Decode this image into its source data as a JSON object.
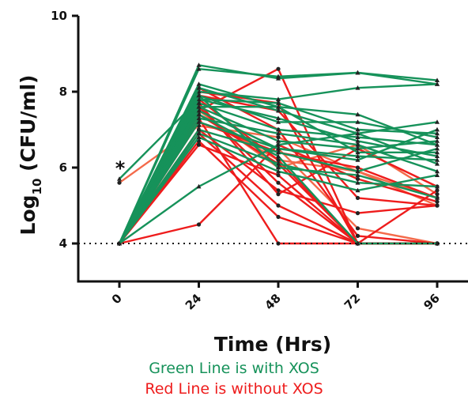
{
  "chart_data": {
    "type": "line",
    "xlabel": "Time (Hrs)",
    "ylabel_main": "Log",
    "ylabel_sub": "10",
    "ylabel_tail": " (CFU/ml)",
    "x": [
      0,
      24,
      48,
      72,
      96
    ],
    "x_tick_labels": [
      "0",
      "24",
      "48",
      "72",
      "96"
    ],
    "y_ticks": [
      4,
      6,
      8,
      10
    ],
    "ylim": [
      3,
      10
    ],
    "detection_limit": 4,
    "annotation": "*",
    "grid": false,
    "legend_notes": {
      "green": "Green Line is with XOS",
      "red": "Red Line is without XOS"
    },
    "colors": {
      "green": "#16925a",
      "red": "#ee1c1c",
      "orange": "#f46a4a",
      "axis": "#111111"
    },
    "series": [
      {
        "group": "green",
        "values": [
          4.0,
          8.7,
          8.35,
          8.5,
          8.3
        ]
      },
      {
        "group": "green",
        "values": [
          4.0,
          8.6,
          8.4,
          8.5,
          8.2
        ]
      },
      {
        "group": "green",
        "values": [
          4.0,
          8.2,
          7.6,
          7.4,
          6.6
        ]
      },
      {
        "group": "green",
        "values": [
          4.0,
          8.0,
          7.8,
          8.1,
          8.2
        ]
      },
      {
        "group": "green",
        "values": [
          4.0,
          7.9,
          7.2,
          7.2,
          6.8
        ]
      },
      {
        "group": "green",
        "values": [
          4.0,
          7.8,
          7.7,
          7.0,
          6.9
        ]
      },
      {
        "group": "green",
        "values": [
          4.0,
          7.7,
          7.0,
          6.8,
          6.6
        ]
      },
      {
        "group": "green",
        "values": [
          4.0,
          7.6,
          7.6,
          6.4,
          6.4
        ]
      },
      {
        "group": "green",
        "values": [
          4.0,
          7.5,
          6.5,
          6.2,
          7.0
        ]
      },
      {
        "group": "green",
        "values": [
          4.0,
          7.3,
          6.9,
          6.6,
          5.9
        ]
      },
      {
        "group": "green",
        "values": [
          4.0,
          7.2,
          6.5,
          6.3,
          6.2
        ]
      },
      {
        "group": "green",
        "values": [
          4.0,
          7.0,
          6.4,
          5.9,
          6.5
        ]
      },
      {
        "group": "green",
        "values": [
          4.0,
          6.9,
          6.1,
          5.6,
          5.5
        ]
      },
      {
        "group": "green",
        "values": [
          4.0,
          6.8,
          5.9,
          5.4,
          5.8
        ]
      },
      {
        "group": "green",
        "values": [
          4.0,
          5.5,
          6.6,
          6.9,
          7.2
        ]
      },
      {
        "group": "green",
        "values": [
          4.0,
          7.4,
          6.3,
          4.0,
          4.0
        ]
      },
      {
        "group": "green",
        "values": [
          5.7,
          7.8,
          7.3,
          6.7,
          6.3
        ]
      },
      {
        "group": "green",
        "values": [
          4.0,
          7.9,
          6.0,
          5.8,
          5.2
        ]
      },
      {
        "group": "green",
        "values": [
          4.0,
          8.1,
          7.5,
          6.9,
          6.1
        ]
      },
      {
        "group": "green",
        "values": [
          4.0,
          7.6,
          6.7,
          6.5,
          6.7
        ]
      },
      {
        "group": "red",
        "values": [
          4.0,
          7.5,
          8.6,
          4.0,
          4.0
        ]
      },
      {
        "group": "red",
        "values": [
          4.0,
          7.8,
          6.2,
          4.0,
          4.0
        ]
      },
      {
        "group": "red",
        "values": [
          4.0,
          7.6,
          5.6,
          4.0,
          4.0
        ]
      },
      {
        "group": "red",
        "values": [
          4.0,
          7.3,
          4.0,
          4.0,
          4.0
        ]
      },
      {
        "group": "red",
        "values": [
          4.0,
          7.2,
          6.4,
          6.0,
          5.2
        ]
      },
      {
        "group": "red",
        "values": [
          4.0,
          7.0,
          5.4,
          4.8,
          5.0
        ]
      },
      {
        "group": "red",
        "values": [
          4.0,
          6.9,
          5.0,
          4.0,
          4.0
        ]
      },
      {
        "group": "red",
        "values": [
          4.0,
          6.7,
          4.7,
          4.0,
          5.4
        ]
      },
      {
        "group": "red",
        "values": [
          4.0,
          7.9,
          7.5,
          5.2,
          5.0
        ]
      },
      {
        "group": "red",
        "values": [
          4.0,
          8.1,
          7.0,
          4.2,
          4.0
        ]
      },
      {
        "group": "red",
        "values": [
          4.0,
          4.5,
          6.6,
          5.7,
          5.1
        ]
      },
      {
        "group": "red",
        "values": [
          4.0,
          7.7,
          5.3,
          6.5,
          5.5
        ]
      },
      {
        "group": "red",
        "values": [
          4.0,
          7.4,
          6.1,
          4.0,
          4.0
        ]
      },
      {
        "group": "red",
        "values": [
          4.0,
          6.6,
          5.8,
          4.0,
          4.0
        ]
      },
      {
        "group": "red",
        "values": [
          4.0,
          8.0,
          7.7,
          4.0,
          4.0
        ]
      },
      {
        "group": "orange",
        "values": [
          5.6,
          7.1,
          6.8,
          5.9,
          5.2
        ]
      },
      {
        "group": "orange",
        "values": [
          4.0,
          7.4,
          6.2,
          5.9,
          5.0
        ]
      },
      {
        "group": "orange",
        "values": [
          4.0,
          7.2,
          6.5,
          4.4,
          4.0
        ]
      },
      {
        "group": "orange",
        "values": [
          4.0,
          7.5,
          6.0,
          6.6,
          5.3
        ]
      }
    ]
  }
}
